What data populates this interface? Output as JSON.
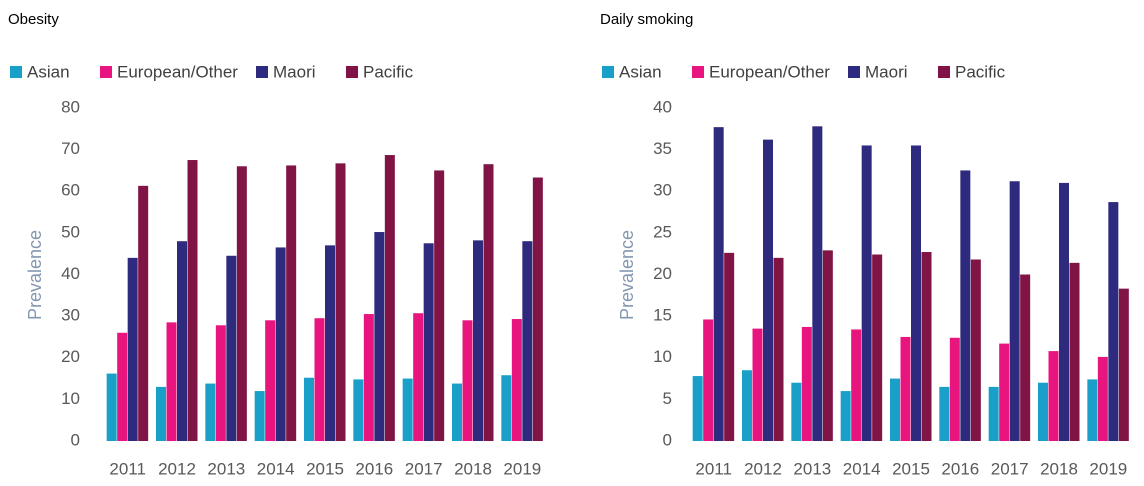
{
  "chart_data": [
    {
      "type": "bar",
      "title": "Obesity",
      "y_label": "Prevalence",
      "categories": [
        "2011",
        "2012",
        "2013",
        "2014",
        "2015",
        "2016",
        "2017",
        "2018",
        "2019"
      ],
      "series": [
        {
          "name": "Asian",
          "color": "#1a9fc9",
          "values": [
            16.2,
            13,
            13.8,
            12,
            15.2,
            14.8,
            15,
            13.8,
            15.8
          ]
        },
        {
          "name": "European/Other",
          "color": "#e8157f",
          "values": [
            26,
            28.5,
            27.8,
            29,
            29.5,
            30.5,
            30.7,
            29,
            29.3
          ]
        },
        {
          "name": "Maori",
          "color": "#2e2a7e",
          "values": [
            44,
            48,
            44.5,
            46.5,
            47,
            50.2,
            47.5,
            48.2,
            48
          ]
        },
        {
          "name": "Pacific",
          "color": "#7f1445",
          "values": [
            61.3,
            67.5,
            66,
            66.2,
            66.7,
            68.7,
            65,
            66.5,
            63.3
          ]
        }
      ],
      "ylim": [
        0,
        80
      ],
      "yticks": [
        0,
        10,
        20,
        30,
        40,
        50,
        60,
        70,
        80
      ],
      "grid": false,
      "legend": "top"
    },
    {
      "type": "bar",
      "title": "Daily smoking",
      "y_label": "Prevalence",
      "categories": [
        "2011",
        "2012",
        "2013",
        "2014",
        "2015",
        "2016",
        "2017",
        "2018",
        "2019"
      ],
      "series": [
        {
          "name": "Asian",
          "color": "#1a9fc9",
          "values": [
            7.8,
            8.5,
            7,
            6,
            7.5,
            6.5,
            6.5,
            7,
            7.4
          ]
        },
        {
          "name": "European/Other",
          "color": "#e8157f",
          "values": [
            14.6,
            13.5,
            13.7,
            13.4,
            12.5,
            12.4,
            11.7,
            10.8,
            10.1
          ]
        },
        {
          "name": "Maori",
          "color": "#2e2a7e",
          "values": [
            37.7,
            36.2,
            37.8,
            35.5,
            35.5,
            32.5,
            31.2,
            31,
            28.7
          ]
        },
        {
          "name": "Pacific",
          "color": "#7f1445",
          "values": [
            22.6,
            22,
            22.9,
            22.4,
            22.7,
            21.8,
            20,
            21.4,
            18.3
          ]
        }
      ],
      "ylim": [
        0,
        40
      ],
      "yticks": [
        0,
        5,
        10,
        15,
        20,
        25,
        30,
        35,
        40
      ],
      "grid": false,
      "legend": "top"
    }
  ]
}
